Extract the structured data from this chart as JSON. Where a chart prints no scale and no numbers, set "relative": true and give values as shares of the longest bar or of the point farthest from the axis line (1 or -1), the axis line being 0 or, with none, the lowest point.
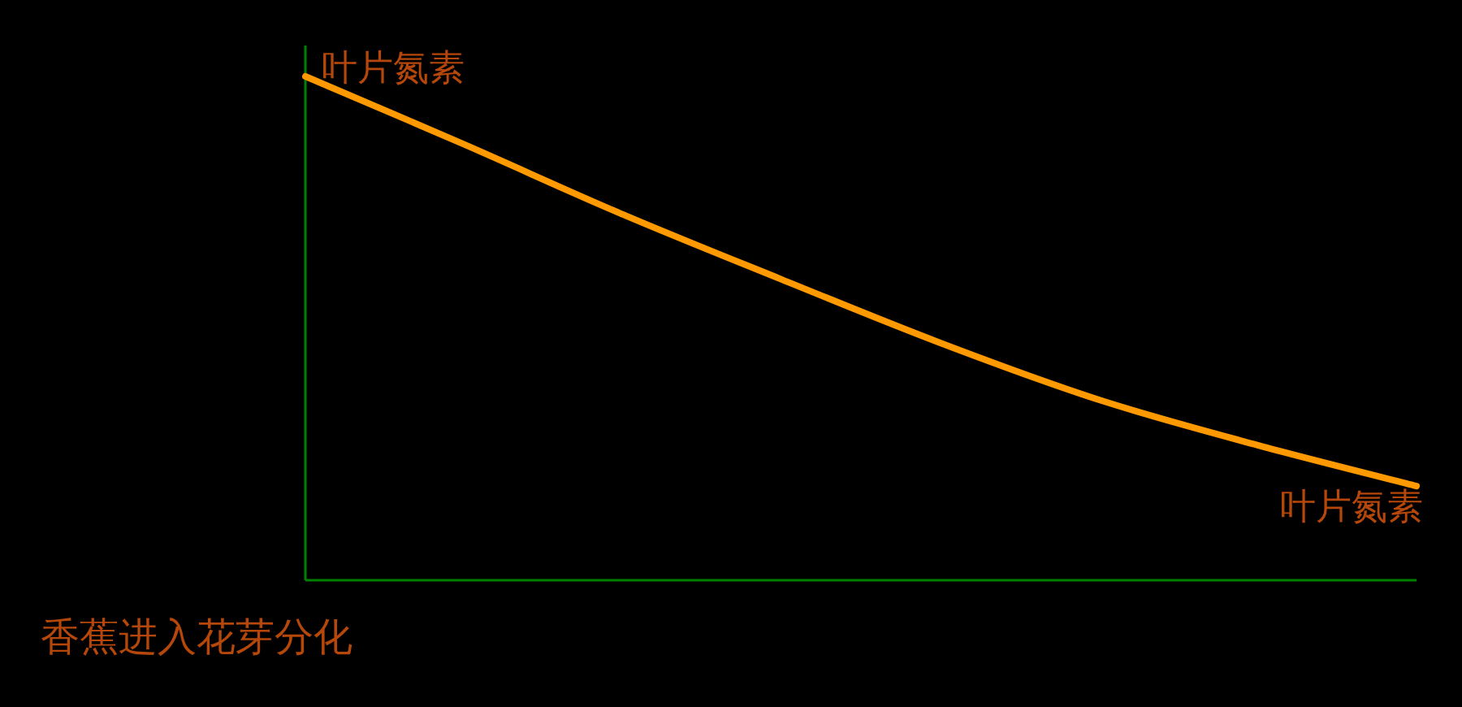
{
  "chart_data": {
    "type": "line",
    "relative": true,
    "xlabel": "香蕉进入花芽分化",
    "categories": [
      null,
      null,
      null,
      null,
      null,
      null,
      null,
      null
    ],
    "series": [
      {
        "name": "叶片氮素",
        "color": "#ff9900",
        "values": [
          1,
          0.865,
          0.726,
          0.597,
          0.471,
          0.358,
          0.268,
          0.187
        ]
      }
    ],
    "marker": "none",
    "line_style": "solid"
  }
}
